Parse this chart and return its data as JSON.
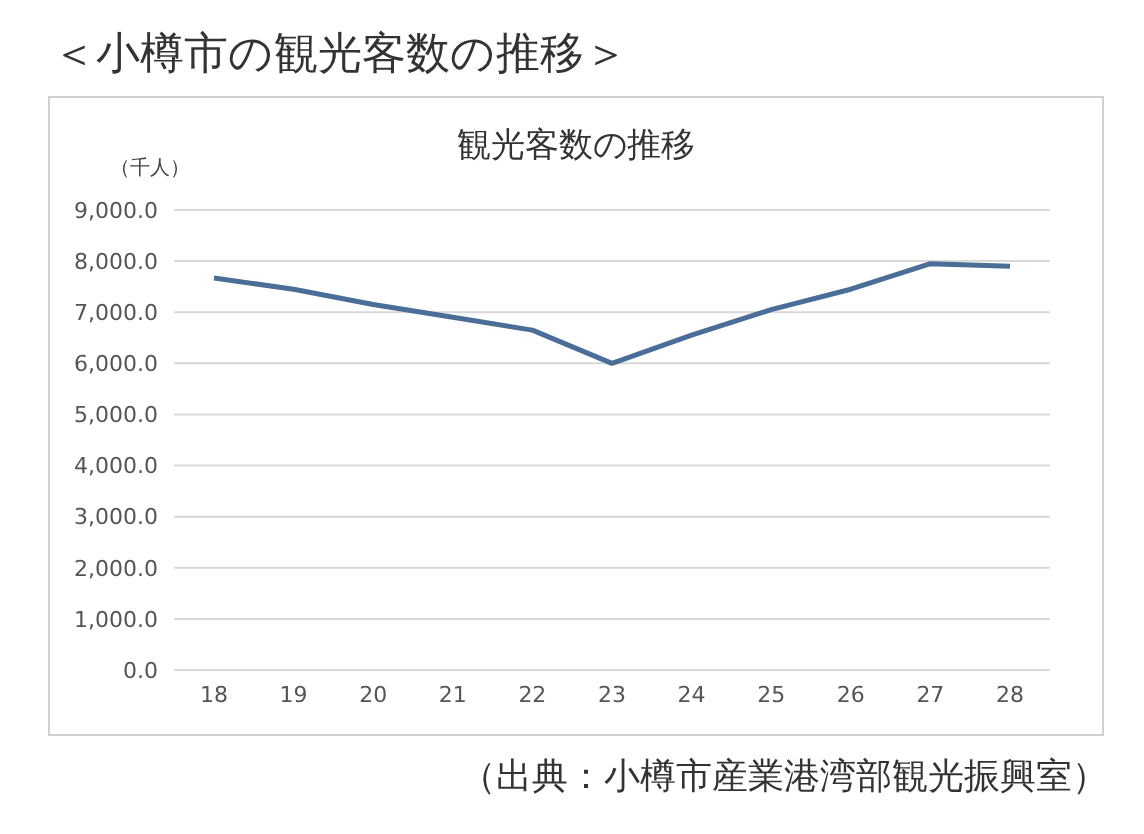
{
  "chart_data": {
    "type": "line",
    "title": "＜小樽市の観光客数の推移＞",
    "subtitle": "観光客数の推移",
    "ylabel": "（千人）",
    "categories": [
      "18",
      "19",
      "20",
      "21",
      "22",
      "23",
      "24",
      "25",
      "26",
      "27",
      "28"
    ],
    "series": [
      {
        "color": "#4a6e98",
        "values": [
          7670,
          7450,
          7150,
          6900,
          6650,
          6000,
          6550,
          7050,
          7450,
          7950,
          7900
        ]
      }
    ],
    "ylim": [
      0,
      9000
    ],
    "yticks": [
      {
        "value": 0,
        "label": "0.0"
      },
      {
        "value": 1000,
        "label": "1,000.0"
      },
      {
        "value": 2000,
        "label": "2,000.0"
      },
      {
        "value": 3000,
        "label": "3,000.0"
      },
      {
        "value": 4000,
        "label": "4,000.0"
      },
      {
        "value": 5000,
        "label": "5,000.0"
      },
      {
        "value": 6000,
        "label": "6,000.0"
      },
      {
        "value": 7000,
        "label": "7,000.0"
      },
      {
        "value": 8000,
        "label": "8,000.0"
      },
      {
        "value": 9000,
        "label": "9,000.0"
      }
    ],
    "grid": "y",
    "marker": "none",
    "line_style": "solid",
    "annotations": [
      "（出典：小樽市産業港湾部観光振興室）"
    ]
  }
}
